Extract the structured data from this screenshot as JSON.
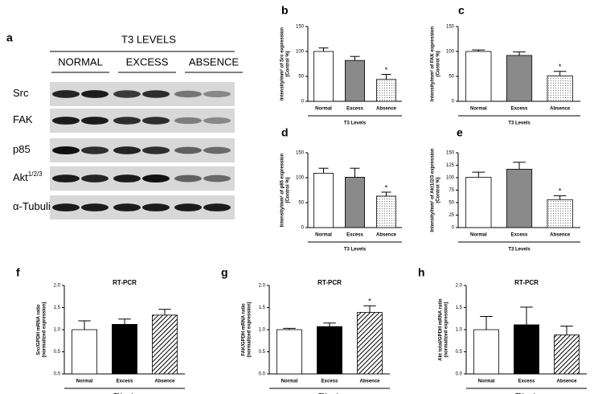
{
  "blot": {
    "panel": "a",
    "title": "T3 LEVELS",
    "groups": [
      "NORMAL",
      "EXCESS",
      "ABSENCE"
    ],
    "rows": [
      {
        "label": "Src"
      },
      {
        "label": "FAK"
      },
      {
        "label": "p85"
      },
      {
        "label": "Akt",
        "sup": "1/2/3"
      },
      {
        "label": "α-Tubulin"
      }
    ]
  },
  "chart_data": [
    {
      "type": "bar",
      "panel": "b",
      "ylabel": "Intensity/mm² of Src expression",
      "ylabel2": "(Control %)",
      "xlabel": "T3 Levels",
      "categories": [
        "Normal",
        "Excess",
        "Absence"
      ],
      "values": [
        100,
        82,
        44
      ],
      "errors": [
        7,
        8,
        10
      ],
      "colors": [
        "#ffffff",
        "#8a8a8a",
        "#ffffff"
      ],
      "patterns": [
        "none",
        "none",
        "dots"
      ],
      "annotations": [
        null,
        null,
        "*"
      ],
      "ylim": [
        0,
        150
      ],
      "yticks": [
        0,
        50,
        100,
        150
      ]
    },
    {
      "type": "bar",
      "panel": "c",
      "ylabel": "Intensity/mm² of FAK expression",
      "ylabel2": "(Control %)",
      "xlabel": "T3 Levels",
      "categories": [
        "Normal",
        "Excess",
        "Absence"
      ],
      "values": [
        100,
        92,
        51
      ],
      "errors": [
        3,
        7,
        9
      ],
      "colors": [
        "#ffffff",
        "#8a8a8a",
        "#ffffff"
      ],
      "patterns": [
        "none",
        "none",
        "dots"
      ],
      "annotations": [
        null,
        null,
        "*"
      ],
      "ylim": [
        0,
        150
      ],
      "yticks": [
        0,
        50,
        100,
        150
      ]
    },
    {
      "type": "bar",
      "panel": "d",
      "ylabel": "Intensity/mm² of p85 expression",
      "ylabel2": "(Control %)",
      "xlabel": "T3 Levels",
      "categories": [
        "Normal",
        "Excess",
        "Absence"
      ],
      "values": [
        109,
        101,
        63
      ],
      "errors": [
        10,
        18,
        8
      ],
      "colors": [
        "#ffffff",
        "#8a8a8a",
        "#ffffff"
      ],
      "patterns": [
        "none",
        "none",
        "dots"
      ],
      "annotations": [
        null,
        null,
        "*"
      ],
      "ylim": [
        0,
        150
      ],
      "yticks": [
        0,
        50,
        100,
        150
      ]
    },
    {
      "type": "bar",
      "panel": "e",
      "ylabel": "Intensity/mm² of Akt1/2/3 expression",
      "ylabel2": "(Control %)",
      "xlabel": "T3 Levels",
      "categories": [
        "Normal",
        "Excess",
        "Absence"
      ],
      "values": [
        101,
        117,
        56
      ],
      "errors": [
        10,
        14,
        8
      ],
      "colors": [
        "#ffffff",
        "#8a8a8a",
        "#ffffff"
      ],
      "patterns": [
        "none",
        "none",
        "dots"
      ],
      "annotations": [
        null,
        null,
        "*"
      ],
      "ylim": [
        0,
        150
      ],
      "yticks": [
        0,
        25,
        50,
        75,
        100,
        125,
        150
      ]
    },
    {
      "type": "bar",
      "panel": "f",
      "title": "RT-PCR",
      "ylabel": "Src/GPDH mRNA ratio",
      "ylabel2": "(normalized expression)",
      "xlabel": "T3 Levels",
      "categories": [
        "Normal",
        "Excess",
        "Absence"
      ],
      "values": [
        1.0,
        1.12,
        1.33
      ],
      "errors": [
        0.2,
        0.12,
        0.13
      ],
      "colors": [
        "#ffffff",
        "#000000",
        "#ffffff"
      ],
      "patterns": [
        "none",
        "none",
        "hatch"
      ],
      "annotations": [
        null,
        null,
        null
      ],
      "ylim": [
        0,
        2
      ],
      "yticks": [
        {
          "value": 0,
          "label": "0.0"
        },
        0.5,
        {
          "value": 1,
          "label": "1.0"
        },
        1.5,
        {
          "value": 2,
          "label": "2.0"
        }
      ]
    },
    {
      "type": "bar",
      "panel": "g",
      "title": "RT-PCR",
      "ylabel": "FAK/GPDH mRNA ratio",
      "ylabel2": "(normalized expression)",
      "xlabel": "T3 Levels",
      "categories": [
        "Normal",
        "Excess",
        "Absence"
      ],
      "values": [
        1.0,
        1.07,
        1.39
      ],
      "errors": [
        0.03,
        0.08,
        0.15
      ],
      "colors": [
        "#ffffff",
        "#000000",
        "#ffffff"
      ],
      "patterns": [
        "none",
        "none",
        "hatch"
      ],
      "annotations": [
        null,
        null,
        "*"
      ],
      "ylim": [
        0,
        2
      ],
      "yticks": [
        {
          "value": 0,
          "label": "0.0"
        },
        0.5,
        {
          "value": 1,
          "label": "1.0"
        },
        1.5,
        {
          "value": 2,
          "label": "2.0"
        }
      ]
    },
    {
      "type": "bar",
      "panel": "h",
      "title": "RT-PCR",
      "ylabel": "Akt total/GPDH mRNA ratio",
      "ylabel2": "(normalized expression)",
      "xlabel": "T3 Levels",
      "categories": [
        "Normal",
        "Excess",
        "Absence"
      ],
      "values": [
        1.0,
        1.11,
        0.88
      ],
      "errors": [
        0.3,
        0.4,
        0.2
      ],
      "colors": [
        "#ffffff",
        "#000000",
        "#ffffff"
      ],
      "patterns": [
        "none",
        "none",
        "hatch"
      ],
      "annotations": [
        null,
        null,
        null
      ],
      "ylim": [
        0,
        2
      ],
      "yticks": [
        {
          "value": 0,
          "label": "0.0"
        },
        0.5,
        {
          "value": 1,
          "label": "1.0"
        },
        1.5,
        {
          "value": 2,
          "label": "2.0"
        }
      ]
    }
  ]
}
